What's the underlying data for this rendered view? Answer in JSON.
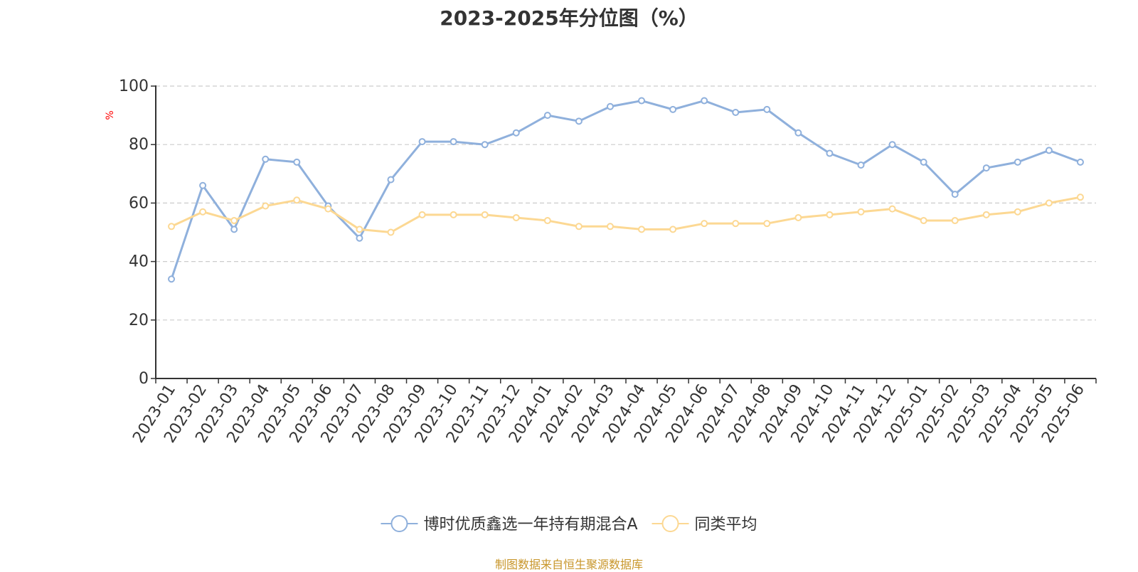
{
  "chart_data": {
    "type": "line",
    "title": "2023-2025年分位图（%）",
    "ylabel": "%",
    "xlabel": "",
    "ylim": [
      0,
      100
    ],
    "yticks": [
      0,
      20,
      40,
      60,
      80,
      100
    ],
    "grid": true,
    "legend_position": "bottom",
    "categories": [
      "2023-01",
      "2023-02",
      "2023-03",
      "2023-04",
      "2023-05",
      "2023-06",
      "2023-07",
      "2023-08",
      "2023-09",
      "2023-10",
      "2023-11",
      "2023-12",
      "2024-01",
      "2024-02",
      "2024-03",
      "2024-04",
      "2024-05",
      "2024-06",
      "2024-07",
      "2024-08",
      "2024-09",
      "2024-10",
      "2024-11",
      "2024-12",
      "2025-01",
      "2025-02",
      "2025-03",
      "2025-04",
      "2025-05",
      "2025-06"
    ],
    "series": [
      {
        "name": "博时优质鑫选一年持有期混合A",
        "color": "#8fb0dc",
        "values": [
          34,
          66,
          51,
          75,
          74,
          59,
          48,
          68,
          81,
          81,
          80,
          84,
          90,
          88,
          93,
          95,
          92,
          95,
          91,
          92,
          84,
          77,
          73,
          80,
          74,
          63,
          72,
          74,
          78,
          74
        ]
      },
      {
        "name": "同类平均",
        "color": "#fcd893",
        "values": [
          52,
          57,
          54,
          59,
          61,
          58,
          51,
          50,
          56,
          56,
          56,
          55,
          54,
          52,
          52,
          51,
          51,
          53,
          53,
          53,
          55,
          56,
          57,
          58,
          54,
          54,
          56,
          57,
          60,
          62
        ]
      }
    ]
  },
  "source_note": "制图数据来自恒生聚源数据库",
  "colors": {
    "axis": "#333333",
    "grid": "#cccccc",
    "source": "#c8962a",
    "ylabel": "#ff0000"
  }
}
